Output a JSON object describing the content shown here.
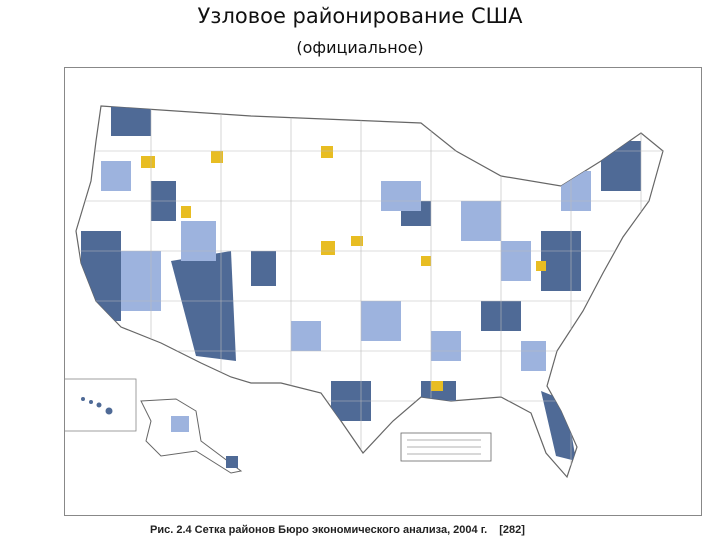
{
  "header": {
    "title": "Узловое районирование США",
    "subtitle": "(официальное)"
  },
  "figure": {
    "caption": "Рис. 2.4 Сетка районов Бюро экономического анализа, 2004 г.",
    "reference": "[282]"
  }
}
